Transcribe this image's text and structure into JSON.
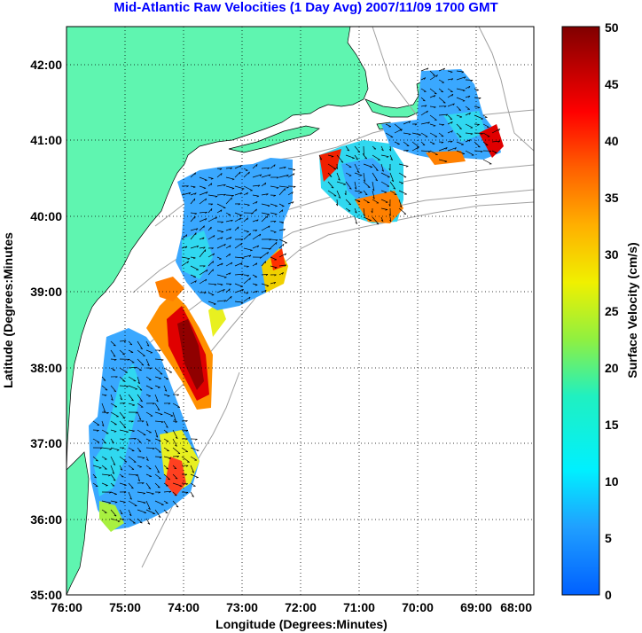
{
  "title": "Mid-Atlantic Raw Velocities (1 Day Avg) 2007/11/09 1700 GMT",
  "map": {
    "xlabel": "Longitude (Degrees:Minutes)",
    "ylabel": "Latitude (Degrees:Minutes",
    "x_ticks": [
      "76:00",
      "75:00",
      "74:00",
      "73:00",
      "72:00",
      "71:00",
      "70:00",
      "69:00",
      "68:00"
    ],
    "y_ticks": [
      "35:00",
      "36:00",
      "37:00",
      "38:00",
      "39:00",
      "40:00",
      "41:00",
      "42:00"
    ],
    "lon_range": [
      -76,
      -68
    ],
    "lat_range": [
      35,
      42.5
    ],
    "land_color": "#5ff5b0",
    "bathymetry_color": "#a0a0a0",
    "grid": "dotted"
  },
  "colorbar": {
    "label": "Surface Velocity (cm/s)",
    "ticks": [
      "0",
      "5",
      "10",
      "15",
      "20",
      "25",
      "30",
      "35",
      "40",
      "45",
      "50"
    ],
    "range": [
      0,
      50
    ],
    "colormap": "jet"
  }
}
